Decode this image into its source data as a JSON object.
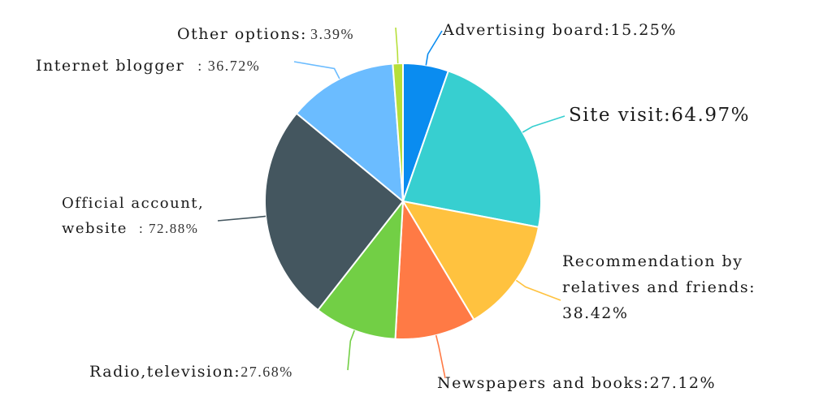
{
  "chart_data": {
    "type": "pie",
    "title": "",
    "slices": [
      {
        "label": "Advertising board",
        "value": 15.25,
        "display": "Advertising board:15.25%",
        "color": "#0a8cf0"
      },
      {
        "label": "Site visit",
        "value": 64.97,
        "display": "Site visit:64.97%",
        "color": "#37cfd0"
      },
      {
        "label": "Recommendation by relatives and friends",
        "value": 38.42,
        "display_lines": [
          "Recommendation by",
          "relatives and friends:",
          "38.42%"
        ],
        "color": "#ffc23f"
      },
      {
        "label": "Newspapers and books",
        "value": 27.12,
        "display": "Newspapers and books:27.12%",
        "color": "#ff7a45"
      },
      {
        "label": "Radio,television",
        "value": 27.68,
        "name": "Radio,television:",
        "pct": "27.68%",
        "color": "#72cf45"
      },
      {
        "label": "Official account, website",
        "value": 72.88,
        "name_lines": [
          "Official account,",
          "website"
        ],
        "pct": ": 72.88%",
        "color": "#44565f"
      },
      {
        "label": "Internet blogger",
        "value": 36.72,
        "name": "Internet blogger",
        "pct": ": 36.72%",
        "color": "#6bbcff"
      },
      {
        "label": "Other options",
        "value": 3.39,
        "name": "Other options:",
        "pct": "3.39%",
        "color": "#b6df3a"
      }
    ]
  }
}
